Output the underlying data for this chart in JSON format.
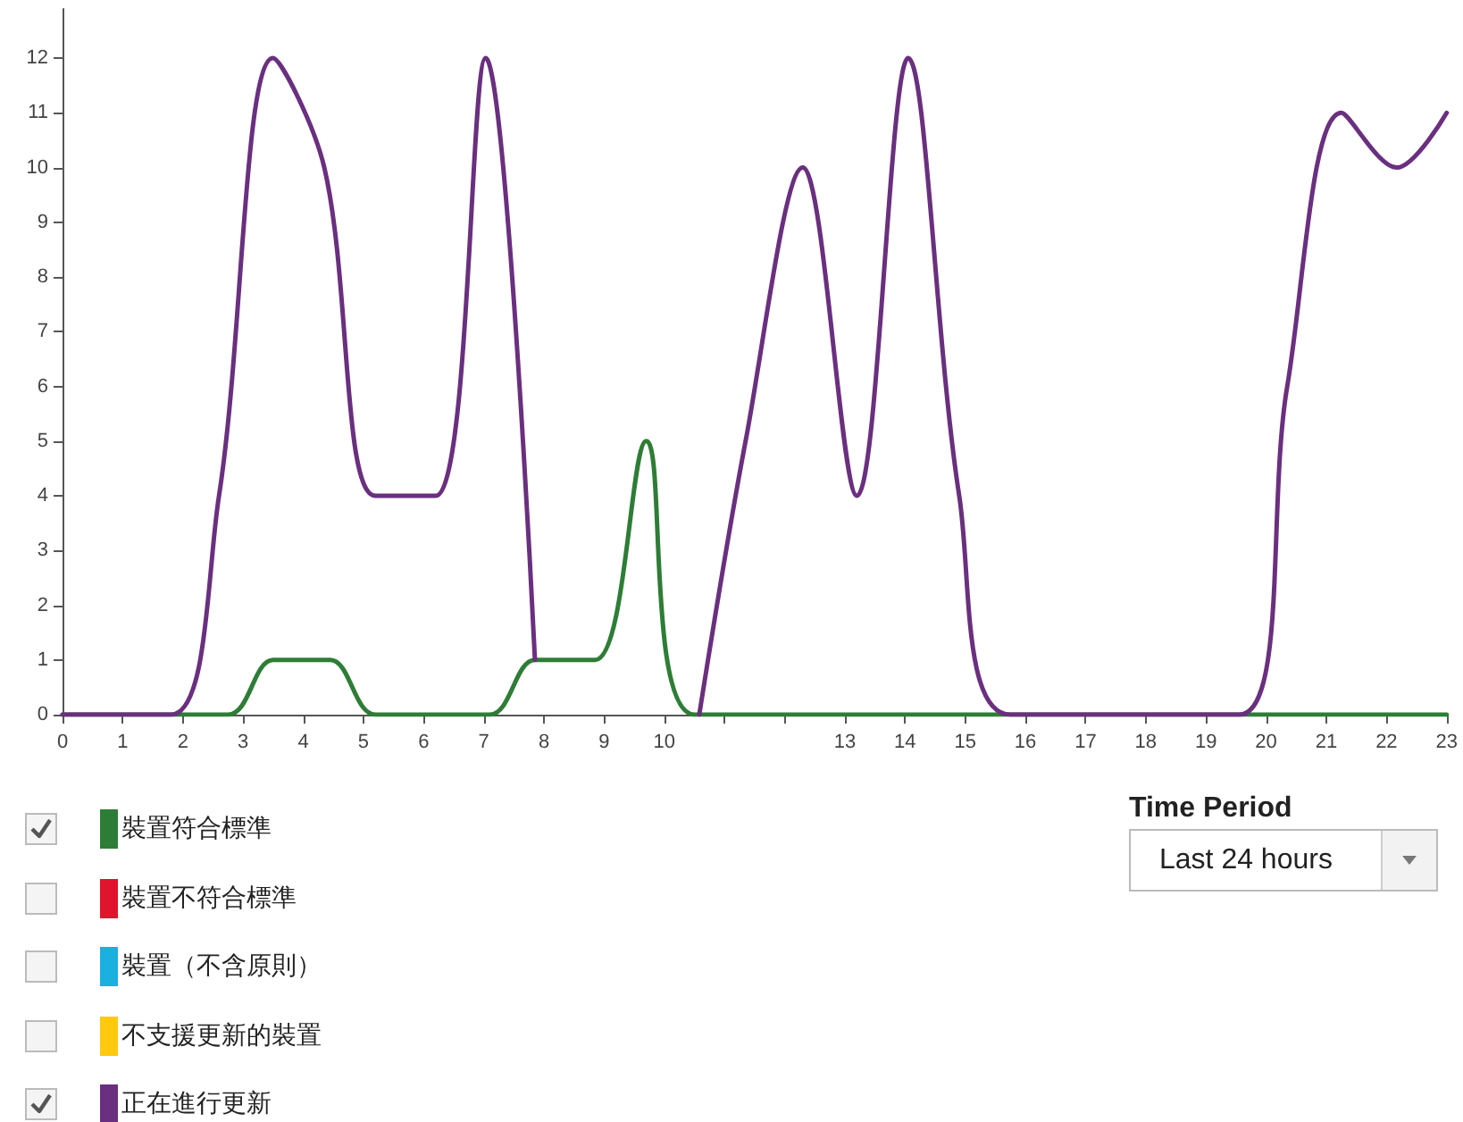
{
  "chart_data": {
    "type": "line",
    "xlim": [
      0,
      23
    ],
    "xticks": [
      0,
      1,
      2,
      3,
      4,
      5,
      6,
      7,
      8,
      9,
      10,
      {
        "value": 11,
        "label": null
      },
      {
        "value": 12,
        "label": null
      },
      13,
      14,
      15,
      16,
      17,
      18,
      19,
      20,
      21,
      22,
      23
    ],
    "ylim": [
      0,
      12.9
    ],
    "yticks": [
      0,
      1,
      2,
      3,
      4,
      5,
      6,
      7,
      8,
      9,
      10,
      11,
      12
    ],
    "grid": false,
    "legend": "bottom",
    "marker": "none",
    "line_style": "solid",
    "annotations": [
      "Time Period",
      "Last 24 hours"
    ],
    "series": [
      {
        "name": "裝置符合標準",
        "color": "#2e7d36",
        "x": [
          0,
          2.75,
          3.5,
          4.45,
          5.2,
          7.1,
          7.85,
          8.85,
          9.7,
          10.5,
          23
        ],
        "values": [
          0,
          0,
          1,
          1,
          0,
          0,
          1,
          1,
          5,
          0,
          0
        ]
      },
      {
        "name": "裝置不符合標準",
        "color": "#e0142c"
      },
      {
        "name": "裝置（不含原則）",
        "color": "#1ab0e0"
      },
      {
        "name": "不支援更新的裝置",
        "color": "#ffc90e"
      },
      {
        "name": "正在進行更新",
        "color": "#6a2f7f",
        "x": [
          0,
          1.8,
          2.6,
          3.5,
          4.35,
          5.2,
          6.2,
          7.03,
          7.85,
          7.86,
          10.58,
          11.35,
          12.3,
          13.2,
          14.05,
          14.9,
          15.75,
          19.55,
          20.35,
          21.25,
          22.17,
          23
        ],
        "values": [
          0,
          0,
          4,
          12,
          10,
          4,
          4,
          12,
          1,
          null,
          0,
          5,
          10,
          4,
          12,
          4,
          0,
          0,
          6,
          11,
          10,
          11
        ]
      }
    ]
  }
}
